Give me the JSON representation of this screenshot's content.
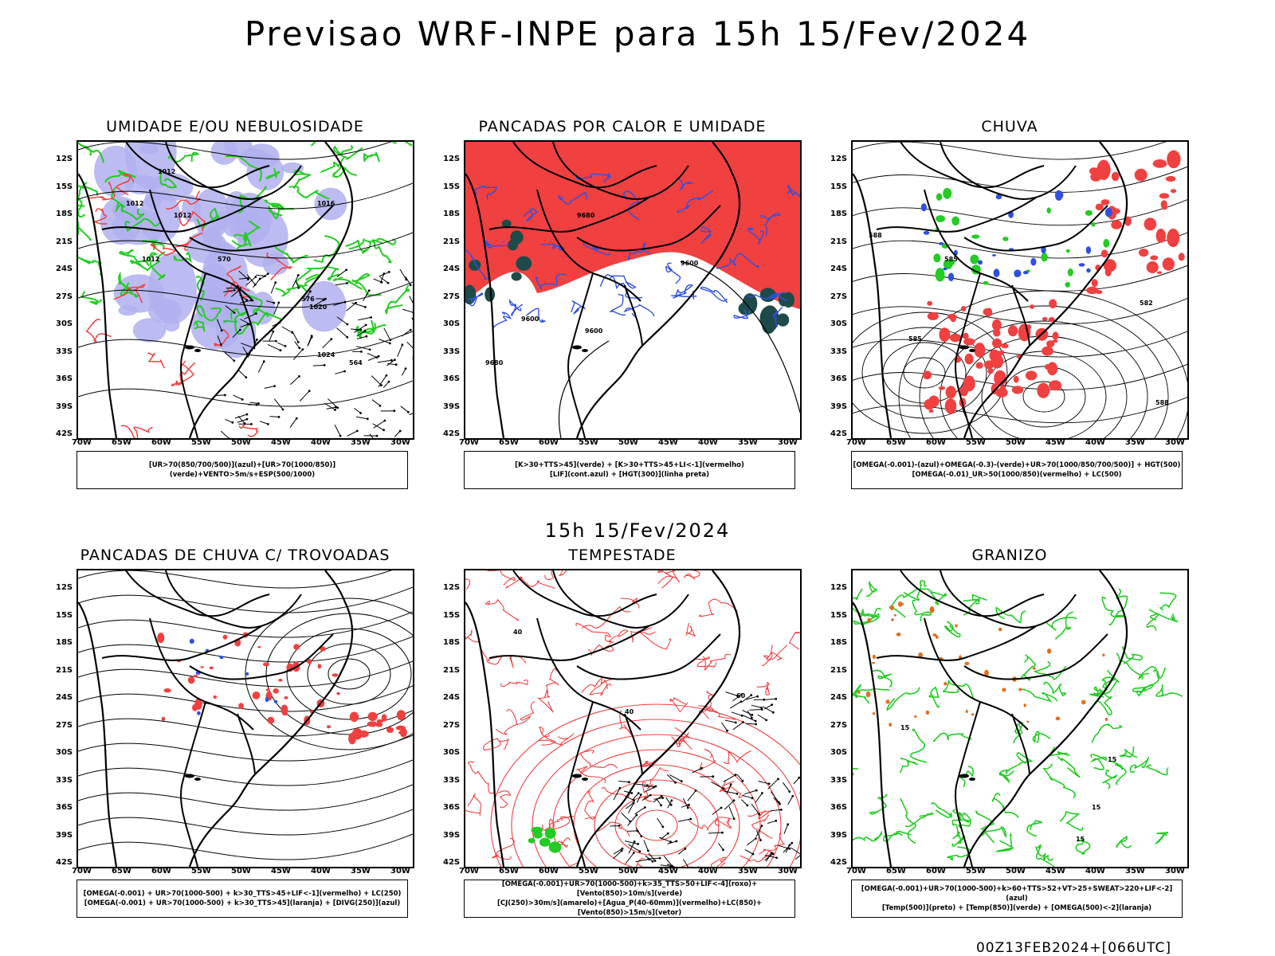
{
  "header": {
    "title": "Previsao WRF-INPE  para 15h 15/Fev/2024"
  },
  "mid_title": "15h 15/Fev/2024",
  "footer": {
    "stamp": "00Z13FEB2024+[066UTC]"
  },
  "axes": {
    "lat_labels": [
      "12S",
      "15S",
      "18S",
      "21S",
      "24S",
      "27S",
      "30S",
      "33S",
      "36S",
      "39S",
      "42S"
    ],
    "lon_labels": [
      "70W",
      "65W",
      "60W",
      "55W",
      "50W",
      "45W",
      "40W",
      "35W",
      "30W"
    ]
  },
  "colors": {
    "green": "#22cc22",
    "red": "#f04040",
    "blue": "#3050e0",
    "lavender": "#b0b0f0",
    "orange": "#e07020",
    "dark_teal": "#1e4a4a",
    "black": "#000000"
  },
  "panels": [
    {
      "id": "umidade",
      "title": "UMIDADE E/OU NEBULOSIDADE",
      "legend": [
        "[UR>70(850/700/500)](azul)+[UR>70(1000/850)](verde)+VENTO>5m/s+ESP(500/1000)"
      ],
      "contour_labels": [
        "1012",
        "1012",
        "1012",
        "1012",
        "1016",
        "1020",
        "1024",
        "576",
        "570",
        "564"
      ]
    },
    {
      "id": "pancadas_calor",
      "title": "PANCADAS POR CALOR E UMIDADE",
      "legend": [
        "[K>30+TTS>45](verde) + [K>30+TTS>45+LI<-1](vermelho)",
        "[LIF](cont.azul) + [HGT(300)](linha preta)"
      ],
      "contour_labels": [
        "9680",
        "9600",
        "9680",
        "9600",
        "9600"
      ]
    },
    {
      "id": "chuva",
      "title": "CHUVA",
      "legend": [
        "[OMEGA(-0.001)-(azul)+OMEGA(-0.3)-(verde)+UR>70(1000/850/700/500)] + HGT(500)",
        "[OMEGA(-0.01)_UR>50(1000/850)(vermelho) + LC(500)"
      ],
      "contour_labels": [
        "588",
        "585",
        "582",
        "585",
        "588"
      ]
    },
    {
      "id": "pancadas_trovoadas",
      "title": "PANCADAS DE CHUVA C/ TROVOADAS",
      "legend": [
        "[OMEGA(-0.001) + UR>70(1000-500) + k>30_TTS>45+LIF<-1](vermelho) + LC(250)",
        "[OMEGA(-0.001) + UR>70(1000-500) + k>30_TTS>45](laranja) + [DIVG(250)](azul)"
      ],
      "contour_labels": []
    },
    {
      "id": "tempestade",
      "title": "TEMPESTADE",
      "legend": [
        "[OMEGA(-0.001)+UR>70(1000-500)+k>35_TTS>50+LIF<-4](roxo)+[Vento(850)>10m/s](verde)",
        "[CJ(250)>30m/s](amarelo)+[Agua_P(40-60mm)](vermelho)+LC(850)+[Vento(850)>15m/s](vetor)"
      ],
      "contour_labels": [
        "40",
        "40",
        "60"
      ]
    },
    {
      "id": "granizo",
      "title": "GRANIZO",
      "legend": [
        "[OMEGA(-0.001)+UR>70(1000-500)+k>60+TTS>52+VT>25+SWEAT>220+LIF<-2](azul)",
        "[Temp(500)](preto) + [Temp(850)](verde) + [OMEGA(500)<-2](laranja)"
      ],
      "contour_labels": [
        "15",
        "15",
        "15",
        "15"
      ]
    }
  ]
}
